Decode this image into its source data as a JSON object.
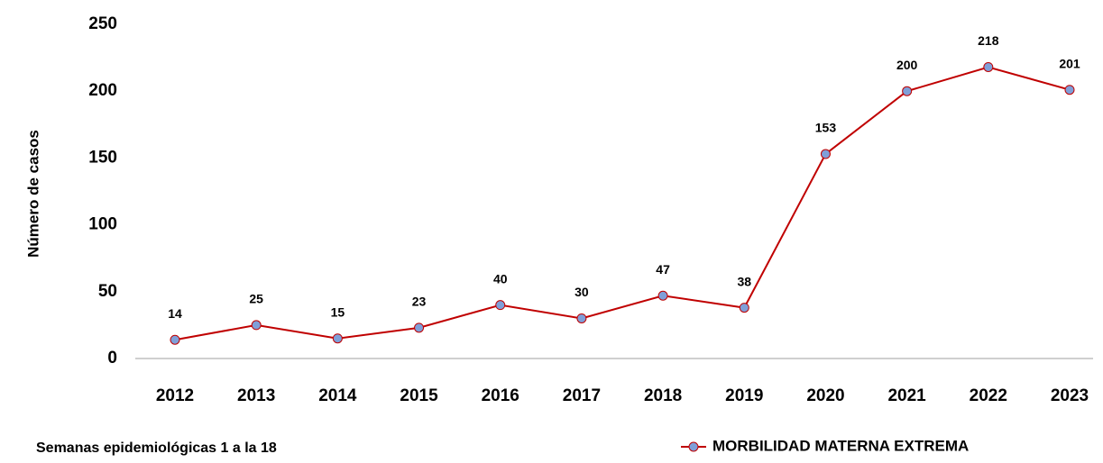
{
  "chart_data": {
    "type": "line",
    "y_axis_label": "Número de casos",
    "annotation": "Semanas epidemiológicas 1 a la 18",
    "categories": [
      "2012",
      "2013",
      "2014",
      "2015",
      "2016",
      "2017",
      "2018",
      "2019",
      "2020",
      "2021",
      "2022",
      "2023"
    ],
    "series": [
      {
        "name": "MORBILIDAD MATERNA EXTREMA",
        "color": "#c00000",
        "marker_color": "#7f9fd8",
        "values": [
          14,
          25,
          15,
          23,
          40,
          30,
          47,
          38,
          153,
          200,
          218,
          201
        ]
      }
    ],
    "ylim": [
      0,
      250
    ],
    "yticks": [
      0,
      50,
      100,
      150,
      200,
      250
    ],
    "grid": false,
    "legend": "bottom-right"
  }
}
